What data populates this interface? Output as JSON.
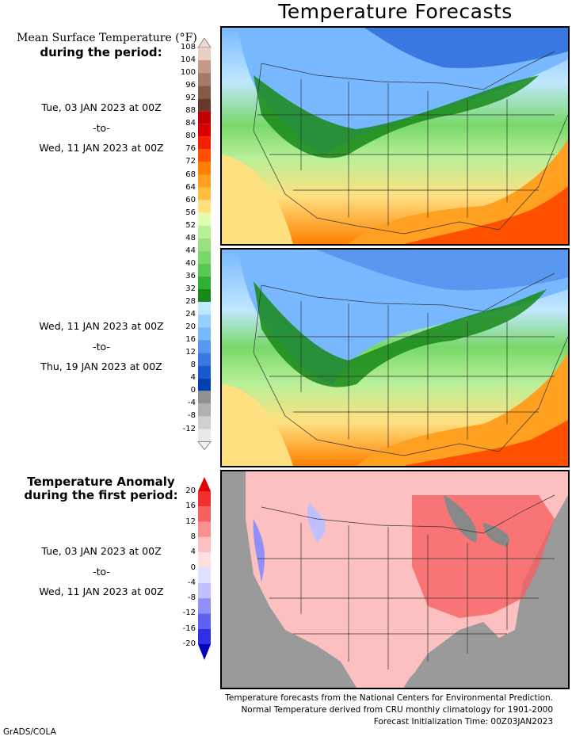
{
  "title": "Temperature Forecasts",
  "mean_label": {
    "line1": "Mean Surface Temperature (°F)",
    "line2": "during the period:"
  },
  "period1": {
    "start": "Tue, 03 JAN 2023 at 00Z",
    "sep": "-to-",
    "end": "Wed, 11 JAN 2023 at 00Z"
  },
  "period2": {
    "start": "Wed, 11 JAN 2023 at 00Z",
    "sep": "-to-",
    "end": "Thu, 19 JAN 2023 at 00Z"
  },
  "anomaly_label": {
    "line1": "Temperature Anomaly",
    "line2": "during the first period:"
  },
  "period3": {
    "start": "Tue, 03 JAN 2023 at 00Z",
    "sep": "-to-",
    "end": "Wed, 11 JAN 2023 at 00Z"
  },
  "temp_scale": {
    "labels": [
      "108",
      "104",
      "100",
      "96",
      "92",
      "88",
      "84",
      "80",
      "76",
      "72",
      "68",
      "64",
      "60",
      "56",
      "52",
      "48",
      "44",
      "40",
      "36",
      "32",
      "28",
      "24",
      "20",
      "16",
      "12",
      "8",
      "4",
      "0",
      "-4",
      "-8",
      "-12"
    ],
    "colors": [
      "#e8d0c8",
      "#c89888",
      "#a87868",
      "#885848",
      "#683828",
      "#c00000",
      "#d80000",
      "#f02000",
      "#ff5000",
      "#ff8000",
      "#ffa020",
      "#ffc040",
      "#ffe080",
      "#e0ffb0",
      "#b8f098",
      "#98e080",
      "#78d868",
      "#58c850",
      "#30b030",
      "#188818",
      "#c0e8ff",
      "#98d0ff",
      "#78b8ff",
      "#5898f0",
      "#3878e0",
      "#1858d0",
      "#0040b0",
      "#909090",
      "#b0b0b0",
      "#d0d0d0",
      "#e8e8e8"
    ]
  },
  "anomaly_scale": {
    "labels": [
      "20",
      "16",
      "12",
      "8",
      "4",
      "0",
      "-4",
      "-8",
      "-12",
      "-16",
      "-20"
    ],
    "colors": [
      "#e00000",
      "#f03030",
      "#f86060",
      "#fb9090",
      "#fcc0c0",
      "#fde0e0",
      "#e0e0ff",
      "#c0c0ff",
      "#9090f8",
      "#6060f0",
      "#3030e0",
      "#0000c0"
    ]
  },
  "footer": {
    "line1": "Temperature forecasts from the National Centers for Environmental Prediction.",
    "line2": "Normal Temperature derived from CRU monthly climatology for 1901-2000",
    "line3": "Forecast Initialization Time: 00Z03JAN2023"
  },
  "credit": "GrADS/COLA"
}
